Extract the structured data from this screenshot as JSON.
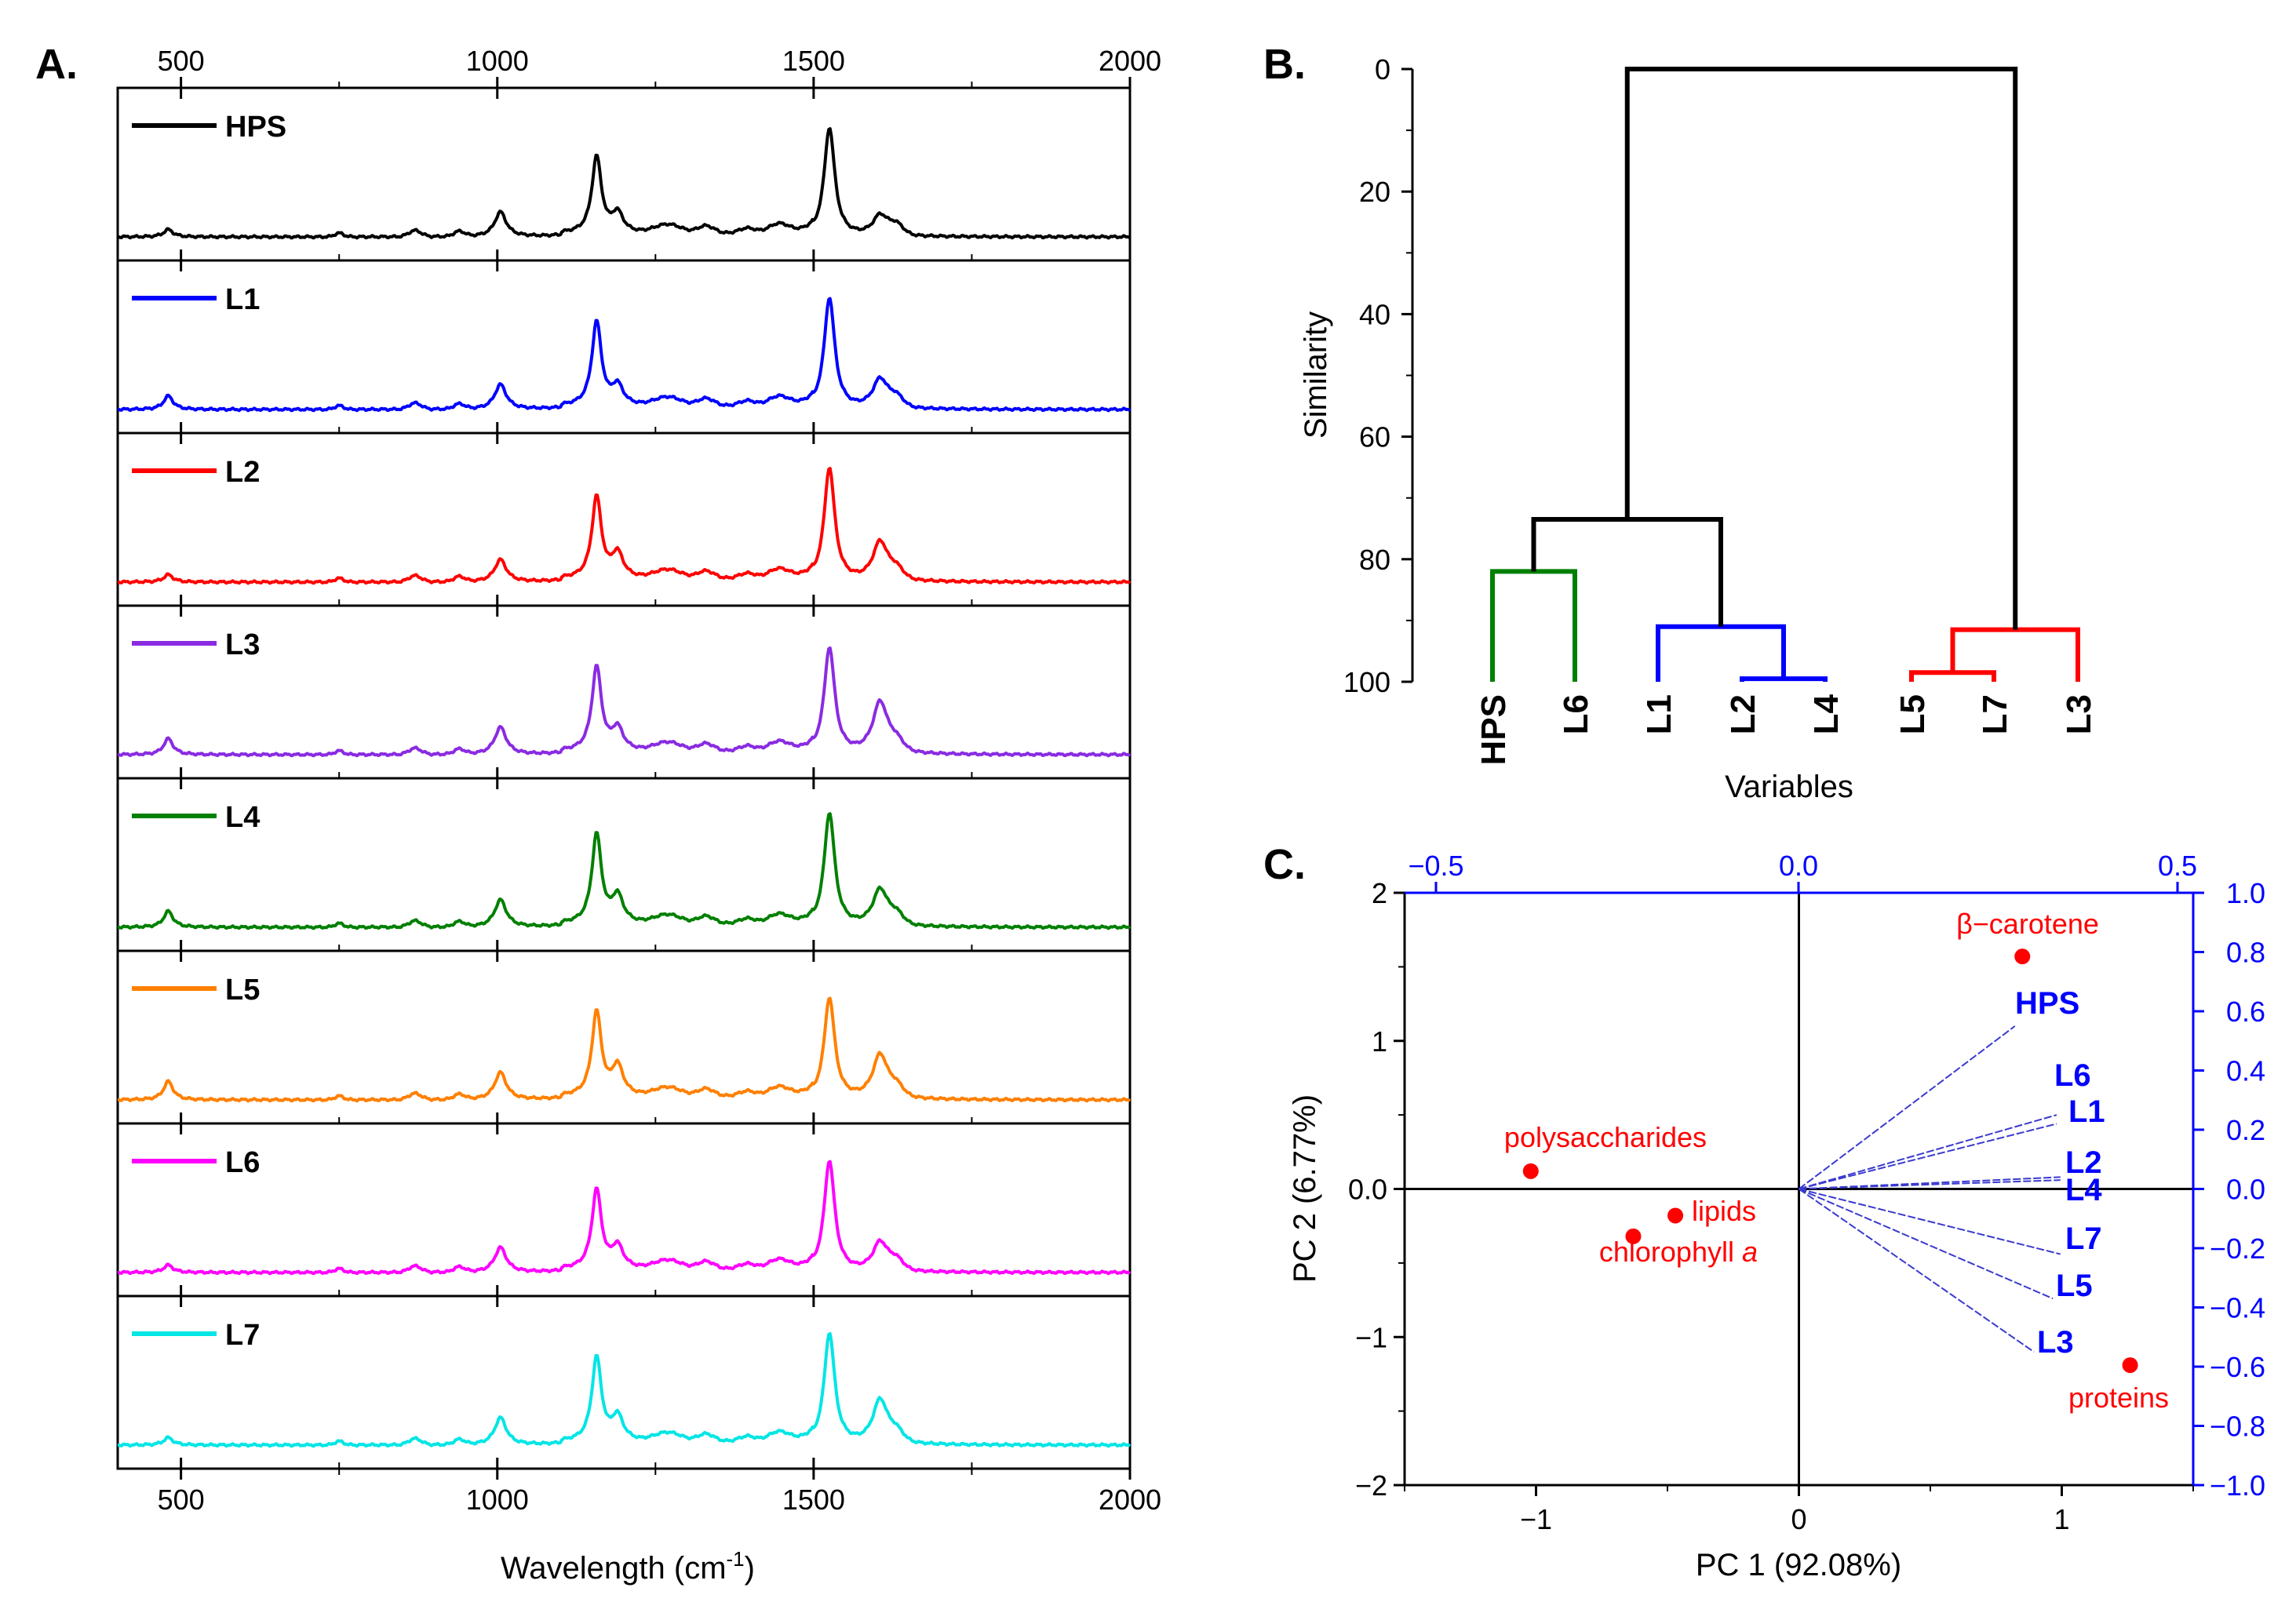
{
  "panelA": {
    "label": "A.",
    "xlabel": "Wavelength (cm",
    "xlabel_sup": "-1",
    "xlabel_close": ")",
    "top_ticks": [
      "500",
      "1000",
      "1500",
      "2000"
    ],
    "bottom_ticks": [
      "500",
      "1000",
      "1500",
      "2000"
    ]
  },
  "panelB": {
    "label": "B.",
    "ylabel": "Similarity",
    "xlabel": "Variables",
    "y_ticks": [
      "0",
      "20",
      "40",
      "60",
      "80",
      "100"
    ],
    "leaves": [
      "HPS",
      "L6",
      "L1",
      "L2",
      "L4",
      "L5",
      "L7",
      "L3"
    ]
  },
  "panelC": {
    "label": "C.",
    "xlabel": "PC 1 (92.08%)",
    "ylabel": "PC 2 (6.77%)",
    "bottom_ticks": [
      "−1",
      "0",
      "1"
    ],
    "left_ticks": [
      "2",
      "1",
      "0.0",
      "−1",
      "−2"
    ],
    "top_ticks": [
      "−0.5",
      "0.0",
      "0.5"
    ],
    "right_ticks": [
      "1.0",
      "0.8",
      "0.6",
      "0.4",
      "0.2",
      "0.0",
      "−0.2",
      "−0.4",
      "−0.6",
      "−0.8",
      "−1.0"
    ],
    "loadings_label_chlorophyll_italic": "a"
  },
  "chart_data": [
    {
      "type": "line",
      "panel": "A",
      "xlabel": "Wavelength (cm-1)",
      "xlim": [
        400,
        2000
      ],
      "peaks_x": [
        480,
        1005,
        1157,
        1190,
        1525,
        1605
      ],
      "series": [
        {
          "name": "HPS",
          "color": "#000000",
          "peak_heights": [
            0.06,
            0.2,
            0.62,
            0.16,
            0.88,
            0.17
          ]
        },
        {
          "name": "L1",
          "color": "#0000ff",
          "peak_heights": [
            0.11,
            0.2,
            0.68,
            0.16,
            0.9,
            0.24
          ]
        },
        {
          "name": "L2",
          "color": "#ff0000",
          "peak_heights": [
            0.06,
            0.18,
            0.66,
            0.2,
            0.92,
            0.32
          ]
        },
        {
          "name": "L3",
          "color": "#8a2be2",
          "peak_heights": [
            0.13,
            0.22,
            0.68,
            0.18,
            0.86,
            0.42
          ]
        },
        {
          "name": "L4",
          "color": "#008000",
          "peak_heights": [
            0.13,
            0.22,
            0.72,
            0.22,
            0.92,
            0.3
          ]
        },
        {
          "name": "L5",
          "color": "#ff8000",
          "peak_heights": [
            0.15,
            0.22,
            0.68,
            0.24,
            0.82,
            0.36
          ]
        },
        {
          "name": "L6",
          "color": "#ff00ff",
          "peak_heights": [
            0.06,
            0.2,
            0.64,
            0.18,
            0.9,
            0.24
          ]
        },
        {
          "name": "L7",
          "color": "#00e5e5",
          "peak_heights": [
            0.06,
            0.22,
            0.68,
            0.2,
            0.9,
            0.36
          ]
        }
      ]
    },
    {
      "type": "dendrogram",
      "panel": "B",
      "ylabel": "Similarity",
      "xlabel": "Variables",
      "ylim": [
        0,
        100
      ],
      "leaves": [
        "HPS",
        "L6",
        "L1",
        "L2",
        "L4",
        "L5",
        "L7",
        "L3"
      ],
      "merges": [
        {
          "left": [
            3
          ],
          "right": [
            4
          ],
          "height": 99.5,
          "color": "#0000ff"
        },
        {
          "left": [
            5
          ],
          "right": [
            6
          ],
          "height": 98.5,
          "color": "#ff0000"
        },
        {
          "left": [
            0
          ],
          "right": [
            1
          ],
          "height": 82,
          "color": "#008000"
        },
        {
          "left": [
            2
          ],
          "right": [
            3,
            4
          ],
          "height": 91,
          "color": "#0000ff"
        },
        {
          "left": [
            5,
            6
          ],
          "right": [
            7
          ],
          "height": 91.5,
          "color": "#ff0000"
        },
        {
          "left": [
            0,
            1
          ],
          "right": [
            2,
            3,
            4
          ],
          "height": 73.5,
          "color": "#000000"
        },
        {
          "left": [
            0,
            1,
            2,
            3,
            4
          ],
          "right": [
            5,
            6,
            7
          ],
          "height": 0,
          "color": "#000000"
        }
      ]
    },
    {
      "type": "scatter",
      "panel": "C",
      "xlabel": "PC 1 (92.08%)",
      "ylabel": "PC 2 (6.77%)",
      "xlim": [
        -1.5,
        1.5
      ],
      "ylim": [
        -2,
        2
      ],
      "scores": [
        {
          "label": "β−carotene",
          "x": 0.85,
          "y": 1.57
        },
        {
          "label": "polysaccharides",
          "x": -1.02,
          "y": 0.12
        },
        {
          "label": "lipids",
          "x": -0.47,
          "y": -0.18
        },
        {
          "label": "chlorophyll",
          "x": -0.63,
          "y": -0.32
        },
        {
          "label": "proteins",
          "x": 1.26,
          "y": -1.19
        }
      ],
      "loadings_xlim": [
        -0.5,
        0.5
      ],
      "loadings_ylim": [
        -1.0,
        1.0
      ],
      "loadings": [
        {
          "label": "HPS",
          "x": 0.285,
          "y": 0.55
        },
        {
          "label": "L6",
          "x": 0.34,
          "y": 0.25
        },
        {
          "label": "L1",
          "x": 0.34,
          "y": 0.22
        },
        {
          "label": "L2",
          "x": 0.345,
          "y": 0.04
        },
        {
          "label": "L4",
          "x": 0.345,
          "y": 0.03
        },
        {
          "label": "L7",
          "x": 0.345,
          "y": -0.22
        },
        {
          "label": "L5",
          "x": 0.335,
          "y": -0.37
        },
        {
          "label": "L3",
          "x": 0.31,
          "y": -0.55
        }
      ]
    }
  ]
}
